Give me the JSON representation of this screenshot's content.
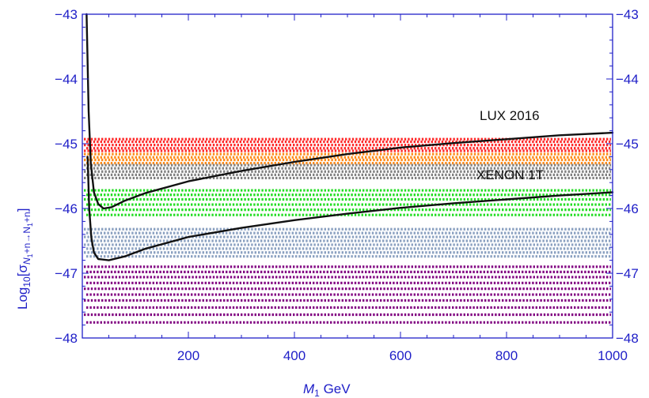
{
  "chart_data": {
    "type": "scatter",
    "title": "",
    "xlabel_var": "M",
    "xlabel_sub": "1",
    "xlabel_unit": " GeV",
    "ylabel_text": "Log",
    "ylabel_sub_a": "10",
    "ylabel_bracket": "[σ",
    "ylabel_sub_b": "N",
    "ylabel_sub_c": "1",
    "ylabel_sub_d": "+n→N",
    "ylabel_sub_e": "1",
    "ylabel_sub_f": "+n",
    "ylabel_end": "]",
    "xlim": [
      0,
      1000
    ],
    "ylim": [
      -48,
      -43
    ],
    "x_ticks": [
      200,
      400,
      600,
      800,
      1000
    ],
    "y_ticks": [
      -48,
      -47,
      -46,
      -45,
      -44,
      -43
    ],
    "x_tick_labels": [
      "200",
      "400",
      "600",
      "800",
      "1000"
    ],
    "y_tick_labels_left": [
      "−48",
      "−47",
      "−46",
      "−45",
      "−44",
      "−43"
    ],
    "y_tick_labels_right": [
      "−48",
      "−47",
      "−46",
      "−45",
      "−44",
      "−43"
    ],
    "annotations": [
      {
        "text": "LUX 2016"
      },
      {
        "text": "XENON 1T"
      }
    ],
    "bands": [
      {
        "color": "#ff2a2a",
        "y_values": [
          -44.93,
          -44.97,
          -45.02,
          -45.07,
          -45.11
        ]
      },
      {
        "color": "#ff8c1a",
        "y_values": [
          -45.16,
          -45.21,
          -45.25,
          -45.3
        ]
      },
      {
        "color": "#808080",
        "y_values": [
          -45.33,
          -45.38,
          -45.43,
          -45.48,
          -45.53
        ]
      },
      {
        "color": "#22dd22",
        "y_values": [
          -45.72,
          -45.79,
          -45.86,
          -45.94,
          -46.02,
          -46.1
        ]
      },
      {
        "color": "#8aa0c0",
        "y_values": [
          -46.32,
          -46.38,
          -46.44,
          -46.5,
          -46.56,
          -46.62,
          -46.68,
          -46.74
        ]
      },
      {
        "color": "#800080",
        "y_values": [
          -46.9,
          -46.98,
          -47.06,
          -47.15,
          -47.24,
          -47.33,
          -47.42,
          -47.53,
          -47.64,
          -47.76
        ]
      }
    ],
    "series": [
      {
        "name": "LUX 2016",
        "color": "#111111",
        "points": [
          [
            8,
            -43.0
          ],
          [
            12,
            -44.5
          ],
          [
            16,
            -45.3
          ],
          [
            22,
            -45.75
          ],
          [
            30,
            -45.93
          ],
          [
            40,
            -46.0
          ],
          [
            55,
            -45.98
          ],
          [
            80,
            -45.88
          ],
          [
            120,
            -45.76
          ],
          [
            200,
            -45.58
          ],
          [
            300,
            -45.42
          ],
          [
            400,
            -45.28
          ],
          [
            500,
            -45.16
          ],
          [
            600,
            -45.06
          ],
          [
            700,
            -44.99
          ],
          [
            800,
            -44.93
          ],
          [
            900,
            -44.87
          ],
          [
            1000,
            -44.83
          ]
        ]
      },
      {
        "name": "XENON 1T",
        "color": "#111111",
        "points": [
          [
            10,
            -45.2
          ],
          [
            13,
            -46.0
          ],
          [
            17,
            -46.45
          ],
          [
            22,
            -46.68
          ],
          [
            30,
            -46.78
          ],
          [
            50,
            -46.8
          ],
          [
            80,
            -46.74
          ],
          [
            120,
            -46.62
          ],
          [
            200,
            -46.44
          ],
          [
            300,
            -46.3
          ],
          [
            400,
            -46.18
          ],
          [
            500,
            -46.08
          ],
          [
            600,
            -45.99
          ],
          [
            700,
            -45.92
          ],
          [
            800,
            -45.86
          ],
          [
            900,
            -45.8
          ],
          [
            1000,
            -45.75
          ]
        ]
      }
    ]
  }
}
